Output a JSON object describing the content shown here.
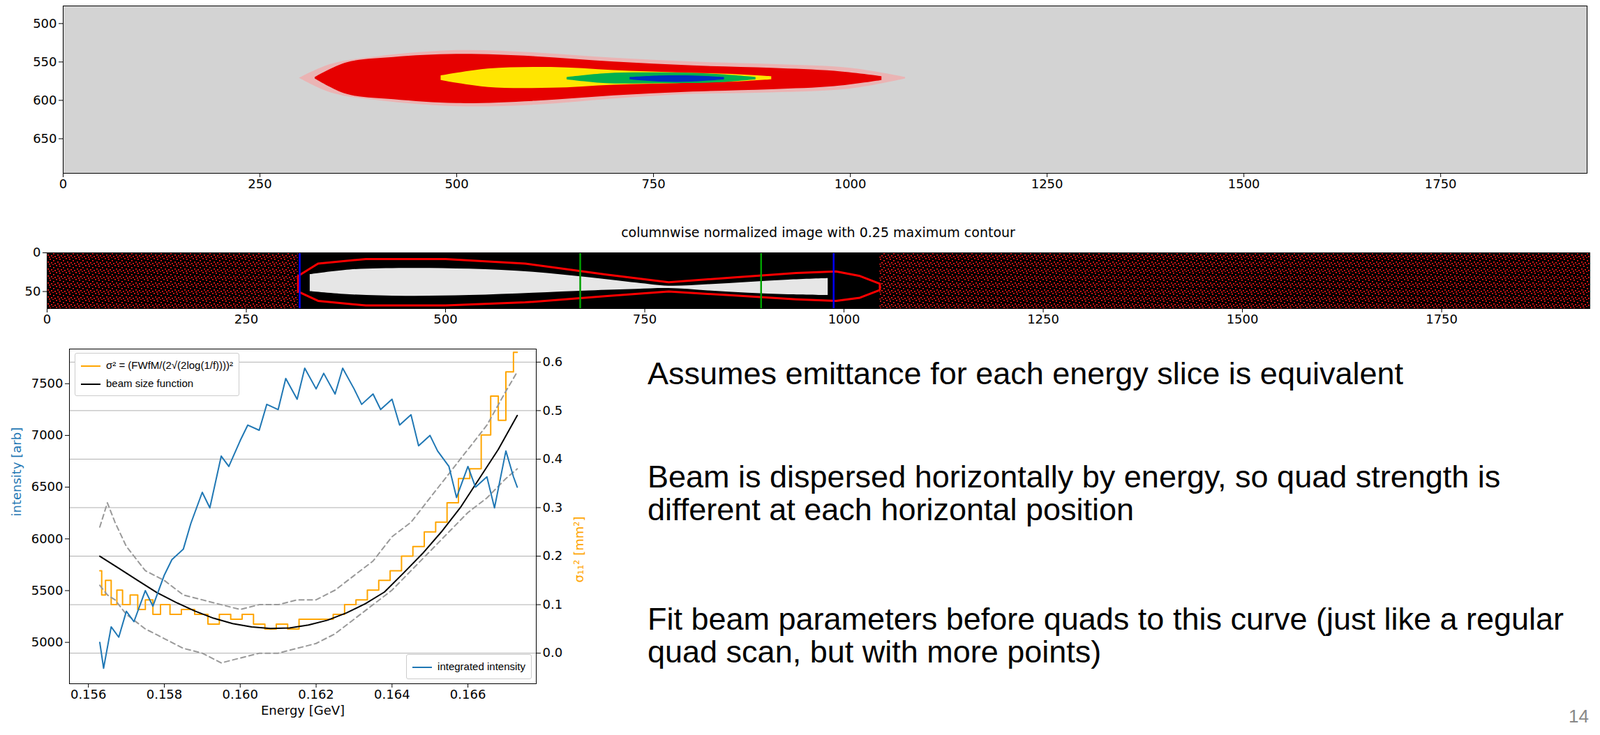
{
  "chart_data": [
    {
      "type": "image",
      "xlim": [
        0,
        1936
      ],
      "ylim": [
        695,
        477
      ],
      "xticks": [
        0,
        250,
        500,
        750,
        1000,
        1250,
        1500,
        1750
      ],
      "yticks": [
        500,
        550,
        600,
        650
      ],
      "color": "#d3d3d3",
      "contours": [
        {
          "color": "#eab4b4",
          "x": [
            300,
            340,
            400,
            500,
            600,
            700,
            800,
            900,
            1000,
            1070
          ],
          "y1": [
            571,
            553,
            543,
            535,
            538,
            545,
            550,
            553,
            558,
            570
          ],
          "y2": [
            571,
            590,
            600,
            608,
            606,
            598,
            592,
            590,
            585,
            572
          ]
        },
        {
          "color": "#e60000",
          "x": [
            320,
            360,
            420,
            500,
            600,
            700,
            800,
            900,
            980,
            1040
          ],
          "y1": [
            570,
            551,
            544,
            540,
            543,
            550,
            555,
            558,
            562,
            569
          ],
          "y2": [
            572,
            592,
            599,
            604,
            601,
            594,
            589,
            586,
            582,
            574
          ]
        },
        {
          "color": "#ffe600",
          "x": [
            480,
            540,
            620,
            700,
            780,
            850,
            900
          ],
          "y1": [
            568,
            559,
            557,
            561,
            564,
            566,
            569
          ],
          "y2": [
            574,
            583,
            584,
            580,
            578,
            576,
            573
          ]
        },
        {
          "color": "#00b050",
          "x": [
            640,
            690,
            760,
            830,
            880
          ],
          "y1": [
            570,
            565,
            564,
            566,
            570
          ],
          "y2": [
            573,
            578,
            578,
            577,
            573
          ]
        },
        {
          "color": "#0030c0",
          "x": [
            720,
            760,
            800,
            840
          ],
          "y1": [
            570,
            568,
            568,
            570
          ],
          "y2": [
            573,
            576,
            576,
            573
          ]
        }
      ]
    },
    {
      "type": "image",
      "title": "columnwise normalized image with 0.25 maximum contour",
      "xlim": [
        0,
        1936
      ],
      "ylim": [
        72,
        0
      ],
      "xticks": [
        0,
        250,
        500,
        750,
        1000,
        1250,
        1500,
        1750
      ],
      "yticks": [
        0,
        50
      ],
      "color": "#000000",
      "noise": {
        "color": "#ff1a1a",
        "x": [
          [
            0,
            315
          ],
          [
            1045,
            1936
          ]
        ]
      },
      "band": {
        "color": "#e6e6e6",
        "x": [
          330,
          380,
          450,
          530,
          610,
          680,
          740,
          780,
          830,
          880,
          930,
          980
        ],
        "y1": [
          28,
          22,
          20,
          21,
          25,
          32,
          39,
          43,
          41,
          38,
          35,
          33
        ],
        "y2": [
          50,
          54,
          56,
          55,
          52,
          49,
          47,
          46,
          49,
          52,
          54,
          55
        ]
      },
      "contour": {
        "color": "#ff0000",
        "x": [
          315,
          340,
          400,
          500,
          600,
          700,
          780,
          860,
          940,
          990,
          1020,
          1045
        ],
        "y1": [
          30,
          14,
          8,
          8,
          14,
          28,
          38,
          32,
          26,
          24,
          30,
          40
        ],
        "y2": [
          50,
          62,
          68,
          68,
          64,
          56,
          50,
          55,
          60,
          62,
          58,
          48
        ]
      },
      "vlines": [
        {
          "color": "#0000ff",
          "x": [
            317,
            987
          ]
        },
        {
          "color": "#00a000",
          "x": [
            669,
            896
          ]
        }
      ]
    },
    {
      "type": "line",
      "xlabel": "Energy [GeV]",
      "ylabel": "intensity [arb]",
      "y2label": "σ₁₁² [mm²]",
      "xlim": [
        0.1555,
        0.1678
      ],
      "ylim": [
        4600,
        7835
      ],
      "y2lim": [
        -0.063,
        0.627
      ],
      "xticks": [
        0.156,
        0.158,
        {
          "value": 0.16,
          "label": "0.160"
        },
        0.162,
        0.164,
        0.166
      ],
      "yticks": [
        5000,
        5500,
        6000,
        6500,
        7000,
        7500
      ],
      "y2ticks": [
        {
          "value": 0,
          "label": "0.0"
        },
        0.1,
        0.2,
        0.3,
        0.4,
        0.5,
        0.6
      ],
      "grid": true,
      "legend": "upper left",
      "series": [
        {
          "name": "σ² = (FWfM/(2√(2log(1/f))))²",
          "color": "#ffa500",
          "axis": "y2",
          "type": "step",
          "line_style": "solid",
          "x": [
            0.1563,
            0.1564,
            0.1565,
            0.1567,
            0.1568,
            0.157,
            0.1572,
            0.1574,
            0.1576,
            0.1578,
            0.158,
            0.1583,
            0.1586,
            0.159,
            0.1593,
            0.1596,
            0.1599,
            0.1602,
            0.1605,
            0.1608,
            0.1611,
            0.1614,
            0.1617,
            0.162,
            0.1623,
            0.1626,
            0.1629,
            0.1632,
            0.1635,
            0.1638,
            0.1641,
            0.1644,
            0.1647,
            0.165,
            0.1653,
            0.1656,
            0.1659,
            0.1662,
            0.1665,
            0.1667,
            0.1669,
            0.1671,
            0.1673
          ],
          "values": [
            0.17,
            0.12,
            0.15,
            0.1,
            0.13,
            0.1,
            0.12,
            0.09,
            0.11,
            0.08,
            0.1,
            0.08,
            0.09,
            0.08,
            0.06,
            0.08,
            0.07,
            0.08,
            0.06,
            0.05,
            0.06,
            0.05,
            0.07,
            0.07,
            0.07,
            0.08,
            0.1,
            0.11,
            0.13,
            0.15,
            0.17,
            0.2,
            0.22,
            0.25,
            0.27,
            0.31,
            0.36,
            0.38,
            0.45,
            0.53,
            0.48,
            0.58,
            0.62
          ]
        },
        {
          "name": "beam size function",
          "color": "#000000",
          "axis": "y2",
          "type": "line",
          "line_style": "solid",
          "x": [
            0.1563,
            0.1568,
            0.1573,
            0.1578,
            0.1583,
            0.1588,
            0.1593,
            0.1598,
            0.1603,
            0.1608,
            0.1613,
            0.1618,
            0.1623,
            0.1628,
            0.1633,
            0.1638,
            0.1643,
            0.1648,
            0.1653,
            0.1658,
            0.1663,
            0.1668,
            0.1673
          ],
          "values": [
            0.2,
            0.175,
            0.15,
            0.125,
            0.105,
            0.087,
            0.072,
            0.061,
            0.054,
            0.051,
            0.052,
            0.058,
            0.068,
            0.083,
            0.102,
            0.126,
            0.165,
            0.205,
            0.25,
            0.3,
            0.36,
            0.42,
            0.49
          ]
        },
        {
          "color": "#999999",
          "axis": "y2",
          "type": "line",
          "line_style": "dashed",
          "x": [
            0.1563,
            0.1565,
            0.1567,
            0.157,
            0.1575,
            0.158,
            0.1585,
            0.159,
            0.1595,
            0.16,
            0.1605,
            0.161,
            0.1615,
            0.162,
            0.1625,
            0.163,
            0.1635,
            0.164,
            0.1645,
            0.165,
            0.1655,
            0.166,
            0.1665,
            0.167,
            0.1673
          ],
          "values": [
            0.26,
            0.31,
            0.27,
            0.22,
            0.17,
            0.15,
            0.12,
            0.11,
            0.1,
            0.09,
            0.1,
            0.1,
            0.11,
            0.11,
            0.13,
            0.16,
            0.19,
            0.24,
            0.27,
            0.32,
            0.37,
            0.42,
            0.47,
            0.54,
            0.58
          ]
        },
        {
          "color": "#999999",
          "axis": "y2",
          "type": "line",
          "line_style": "dashed",
          "x": [
            0.1563,
            0.1565,
            0.1567,
            0.157,
            0.1575,
            0.158,
            0.1585,
            0.159,
            0.1595,
            0.16,
            0.1605,
            0.161,
            0.1615,
            0.162,
            0.1625,
            0.163,
            0.1635,
            0.164,
            0.1645,
            0.165,
            0.1655,
            0.166,
            0.1665,
            0.167,
            0.1673
          ],
          "values": [
            0.14,
            0.12,
            0.11,
            0.08,
            0.05,
            0.03,
            0.01,
            0,
            -0.02,
            -0.01,
            0,
            0,
            0.01,
            0.02,
            0.04,
            0.07,
            0.1,
            0.13,
            0.17,
            0.21,
            0.25,
            0.29,
            0.32,
            0.36,
            0.38
          ]
        },
        {
          "name": "integrated intensity",
          "color": "#1f77b4",
          "axis": "y",
          "type": "line",
          "line_style": "solid",
          "legend": "lower right",
          "x": [
            0.1563,
            0.1564,
            0.1566,
            0.1568,
            0.157,
            0.1572,
            0.1575,
            0.1577,
            0.158,
            0.1582,
            0.1585,
            0.1587,
            0.159,
            0.1592,
            0.1595,
            0.1597,
            0.16,
            0.1602,
            0.1605,
            0.1607,
            0.161,
            0.1612,
            0.1615,
            0.1617,
            0.162,
            0.1622,
            0.1625,
            0.1627,
            0.163,
            0.1632,
            0.1635,
            0.1637,
            0.164,
            0.1642,
            0.1645,
            0.1647,
            0.165,
            0.1652,
            0.1655,
            0.1657,
            0.166,
            0.1662,
            0.1665,
            0.1667,
            0.167,
            0.1672,
            0.1673
          ],
          "values": [
            5000,
            4750,
            5150,
            5050,
            5300,
            5200,
            5500,
            5350,
            5650,
            5800,
            5900,
            6150,
            6450,
            6300,
            6800,
            6700,
            6950,
            7100,
            7050,
            7300,
            7250,
            7550,
            7350,
            7650,
            7450,
            7600,
            7400,
            7650,
            7450,
            7300,
            7400,
            7250,
            7350,
            7100,
            7200,
            6900,
            7000,
            6850,
            6700,
            6400,
            6700,
            6500,
            6600,
            6300,
            6850,
            6600,
            6500
          ]
        }
      ]
    }
  ],
  "slide": {
    "bullets": [
      "Assumes emittance for each energy slice is equivalent",
      "Beam is dispersed horizontally by energy, so quad strength is different at each horizontal position",
      "Fit beam parameters before quads to this curve (just like a regular quad scan, but with more points)"
    ],
    "page_number": "14"
  }
}
